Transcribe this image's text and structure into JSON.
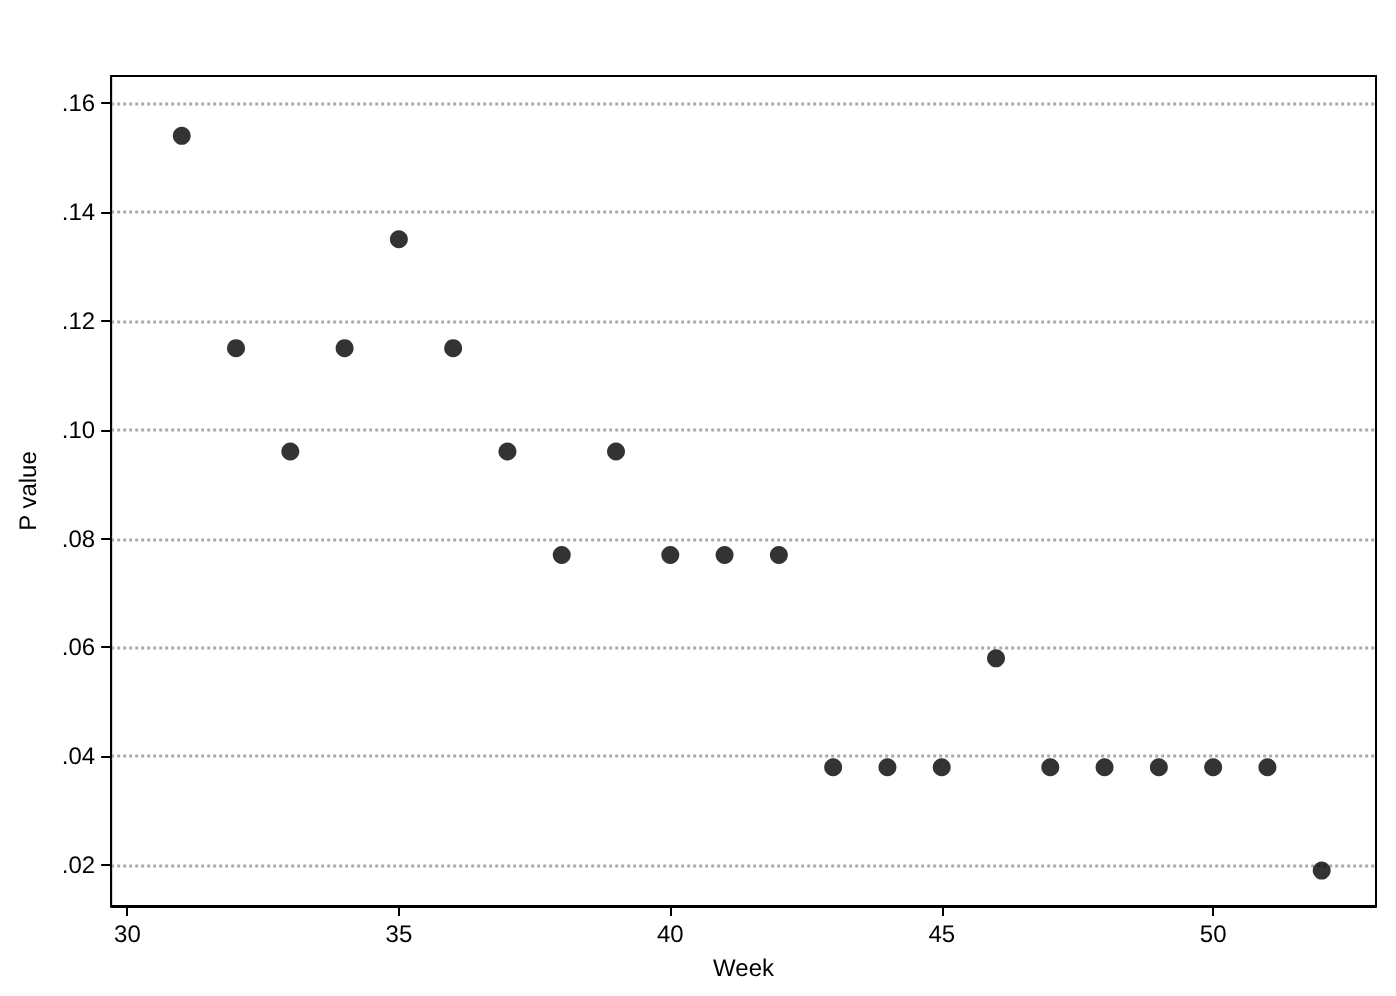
{
  "chart_data": {
    "type": "scatter",
    "xlabel": "Week",
    "ylabel": "P value",
    "x": [
      31,
      32,
      33,
      34,
      35,
      36,
      37,
      38,
      39,
      40,
      41,
      42,
      43,
      44,
      45,
      46,
      47,
      48,
      49,
      50,
      51,
      52
    ],
    "values": [
      0.154,
      0.115,
      0.096,
      0.115,
      0.135,
      0.115,
      0.096,
      0.077,
      0.096,
      0.077,
      0.077,
      0.077,
      0.038,
      0.038,
      0.038,
      0.058,
      0.038,
      0.038,
      0.038,
      0.038,
      0.038,
      0.019
    ],
    "color": "#000000",
    "marker": "circle",
    "xlim": [
      29.7,
      53
    ],
    "xticks": [
      30,
      35,
      40,
      45,
      50
    ],
    "ylim": [
      0.0125,
      0.165
    ],
    "yticks": [
      {
        "value": 0.02,
        "label": ".02"
      },
      {
        "value": 0.04,
        "label": ".04"
      },
      {
        "value": 0.06,
        "label": ".06"
      },
      {
        "value": 0.08,
        "label": ".08"
      },
      {
        "value": 0.1,
        "label": ".10"
      },
      {
        "value": 0.12,
        "label": ".12"
      },
      {
        "value": 0.14,
        "label": ".14"
      },
      {
        "value": 0.16,
        "label": ".16"
      }
    ],
    "grid": "y"
  }
}
